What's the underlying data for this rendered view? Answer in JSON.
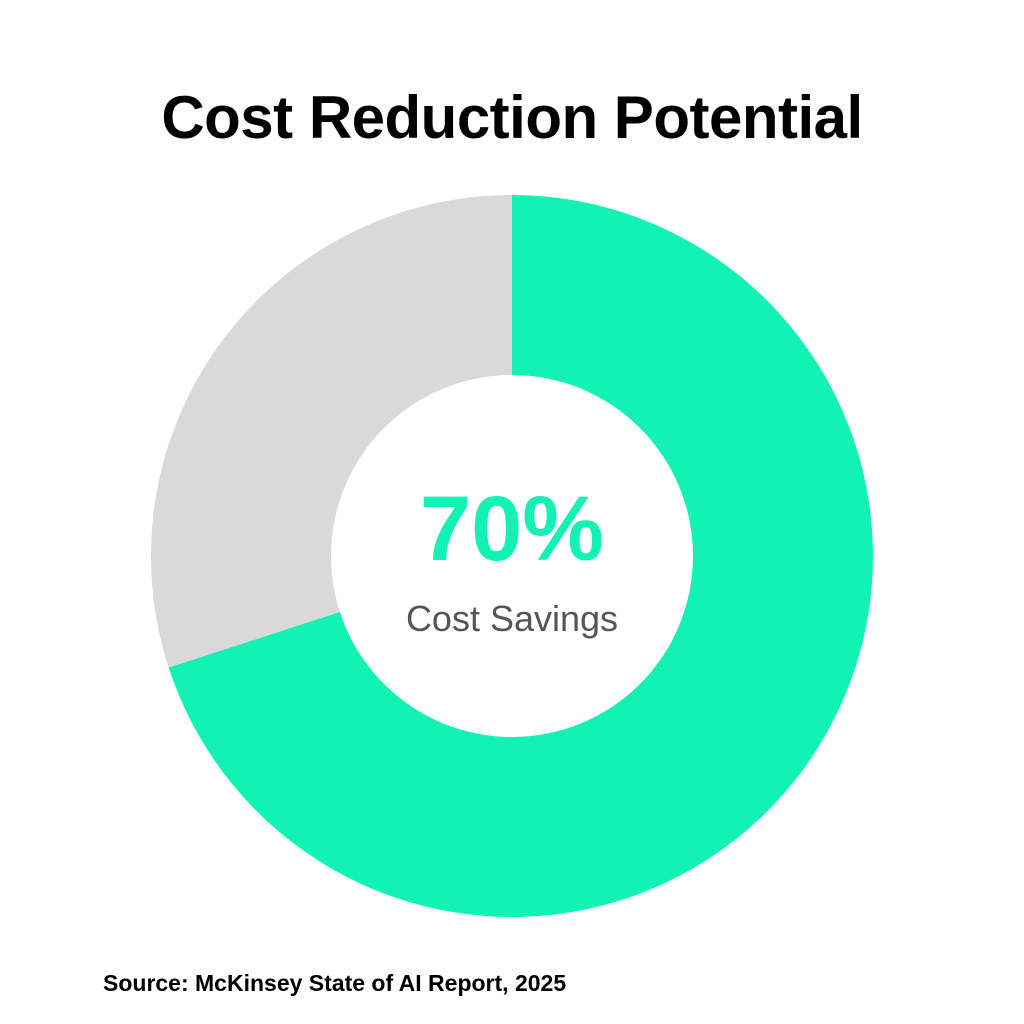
{
  "chart_data": {
    "type": "pie",
    "title": "Cost Reduction Potential",
    "slices": [
      {
        "label": "Cost Savings",
        "value": 70,
        "color": "#12F2B4"
      },
      {
        "label": "",
        "value": 30,
        "color": "#D9D9D9"
      }
    ],
    "center_value": "70%",
    "center_label": "Cost Savings",
    "source": "Source: McKinsey State of AI Report, 2025"
  },
  "colors": {
    "accent": "#12F2B4",
    "remainder": "#D9D9D9",
    "label": "#555555"
  }
}
